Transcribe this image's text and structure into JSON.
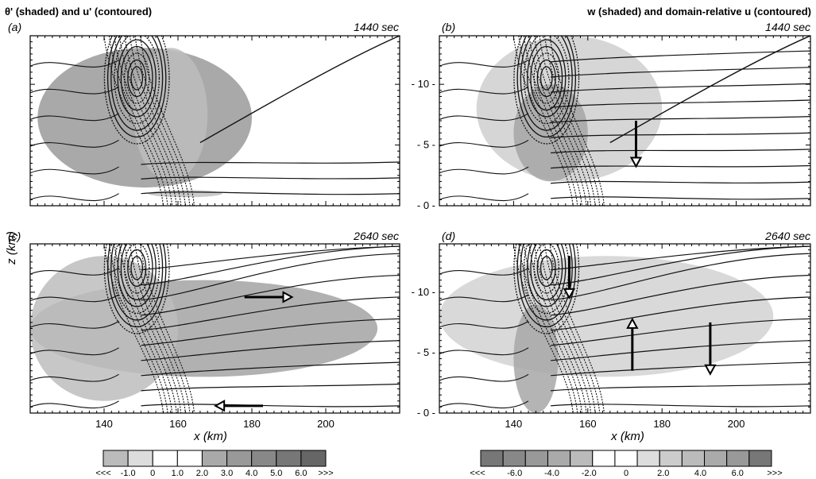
{
  "figure": {
    "left_title": "θ' (shaded) and u' (contoured)",
    "right_title": "w (shaded) and domain-relative u (contoured)",
    "x_axis_label": "x (km)",
    "y_axis_label": "z (km)"
  },
  "panels": [
    {
      "tag": "(a)",
      "time": "1440 sec"
    },
    {
      "tag": "(b)",
      "time": "1440 sec"
    },
    {
      "tag": "(c)",
      "time": "2640 sec"
    },
    {
      "tag": "(d)",
      "time": "2640 sec"
    }
  ],
  "chart_data": {
    "type": "heatmap",
    "x_ticks": [
      140,
      160,
      180,
      200
    ],
    "z_ticks": [
      0,
      5,
      10
    ],
    "x_range_km": [
      120,
      220
    ],
    "z_range_km": [
      0,
      14
    ],
    "left_colorbar": {
      "labels": [
        "<<<",
        "-1.0",
        "0",
        "1.0",
        "2.0",
        "3.0",
        "4.0",
        "5.0",
        "6.0",
        ">>>"
      ],
      "colors": [
        "#bbbbbb",
        "#dddddd",
        "#ffffff",
        "#ffffff",
        "#a9a9a9",
        "#999999",
        "#888888",
        "#777777",
        "#666666"
      ]
    },
    "right_colorbar": {
      "labels": [
        "<<<",
        "-6.0",
        "-4.0",
        "-2.0",
        "0",
        "2.0",
        "4.0",
        "6.0",
        ">>>"
      ],
      "colors": [
        "#777777",
        "#888888",
        "#999999",
        "#aaaaaa",
        "#bbbbbb",
        "#ffffff",
        "#ffffff",
        "#dddddd",
        "#cccccc",
        "#bbbbbb",
        "#aaaaaa",
        "#999999",
        "#777777"
      ]
    },
    "shaded_regions": [
      {
        "panel": "a",
        "tone": "#9a9a9a",
        "x": [
          122,
          180
        ],
        "z": [
          1.5,
          13
        ]
      },
      {
        "panel": "a",
        "tone": "#bdbdbd",
        "x": [
          148,
          168
        ],
        "z": [
          2,
          13
        ]
      },
      {
        "panel": "a",
        "tone": "#c2c2c2",
        "x": [
          152,
          172
        ],
        "z": [
          0.7,
          1.3
        ]
      },
      {
        "panel": "b",
        "tone": "#cfcfcf",
        "x": [
          130,
          180
        ],
        "z": [
          2,
          14
        ]
      },
      {
        "panel": "b",
        "tone": "#a6a6a6",
        "x": [
          140,
          160
        ],
        "z": [
          2,
          10
        ]
      },
      {
        "panel": "c",
        "tone": "#a3a3a3",
        "x": [
          120,
          214
        ],
        "z": [
          3,
          11
        ]
      },
      {
        "panel": "c",
        "tone": "#bdbdbd",
        "x": [
          120,
          160
        ],
        "z": [
          1,
          13
        ]
      },
      {
        "panel": "d",
        "tone": "#d2d2d2",
        "x": [
          120,
          210
        ],
        "z": [
          3,
          13
        ]
      },
      {
        "panel": "d",
        "tone": "#a7a7a7",
        "x": [
          140,
          152
        ],
        "z": [
          0,
          9
        ]
      }
    ],
    "wind_arrows": [
      {
        "panel": "b",
        "direction": "down",
        "x": 173,
        "z_from": 7,
        "z_to": 3.5
      },
      {
        "panel": "c",
        "direction": "right",
        "z": 9.6,
        "x_from": 178,
        "x_to": 190
      },
      {
        "panel": "c",
        "direction": "left",
        "z": 0.6,
        "x_from": 183,
        "x_to": 171
      },
      {
        "panel": "d",
        "direction": "down",
        "x": 155,
        "z_from": 13,
        "z_to": 9.8
      },
      {
        "panel": "d",
        "direction": "up",
        "x": 172,
        "z_from": 3.5,
        "z_to": 7.5
      },
      {
        "panel": "d",
        "direction": "down",
        "x": 193,
        "z_from": 7.5,
        "z_to": 3.5
      }
    ]
  }
}
